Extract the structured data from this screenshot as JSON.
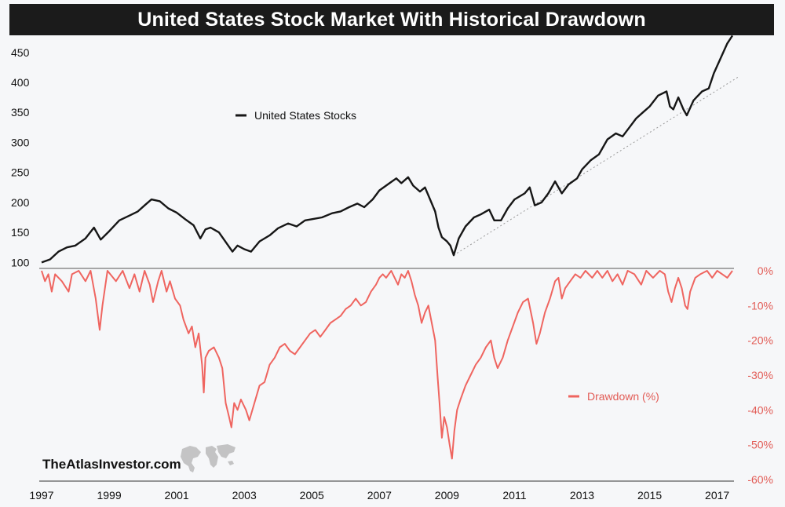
{
  "chart_data": {
    "title": "United States Stock Market With Historical Drawdown",
    "type": "line",
    "x_years": [
      1997,
      1999,
      2001,
      2003,
      2005,
      2007,
      2009,
      2011,
      2013,
      2015,
      2017
    ],
    "x_range": [
      1997.0,
      2017.45
    ],
    "top_panel": {
      "series_name": "United States Stocks",
      "ylim": [
        90,
        485
      ],
      "y_ticks": [
        100,
        150,
        200,
        250,
        300,
        350,
        400,
        450
      ],
      "points": [
        [
          1997.0,
          100
        ],
        [
          1997.25,
          105
        ],
        [
          1997.5,
          118
        ],
        [
          1997.75,
          125
        ],
        [
          1998.0,
          128
        ],
        [
          1998.3,
          140
        ],
        [
          1998.55,
          158
        ],
        [
          1998.75,
          138
        ],
        [
          1999.0,
          152
        ],
        [
          1999.3,
          170
        ],
        [
          1999.6,
          178
        ],
        [
          1999.85,
          185
        ],
        [
          2000.05,
          195
        ],
        [
          2000.25,
          205
        ],
        [
          2000.5,
          202
        ],
        [
          2000.75,
          190
        ],
        [
          2001.0,
          183
        ],
        [
          2001.25,
          172
        ],
        [
          2001.5,
          162
        ],
        [
          2001.7,
          140
        ],
        [
          2001.85,
          155
        ],
        [
          2002.0,
          158
        ],
        [
          2002.25,
          150
        ],
        [
          2002.5,
          130
        ],
        [
          2002.65,
          118
        ],
        [
          2002.8,
          128
        ],
        [
          2003.0,
          122
        ],
        [
          2003.2,
          118
        ],
        [
          2003.45,
          135
        ],
        [
          2003.75,
          145
        ],
        [
          2004.0,
          157
        ],
        [
          2004.3,
          165
        ],
        [
          2004.55,
          160
        ],
        [
          2004.8,
          170
        ],
        [
          2005.0,
          172
        ],
        [
          2005.3,
          175
        ],
        [
          2005.6,
          182
        ],
        [
          2005.85,
          185
        ],
        [
          2006.1,
          192
        ],
        [
          2006.35,
          198
        ],
        [
          2006.55,
          192
        ],
        [
          2006.8,
          205
        ],
        [
          2007.0,
          220
        ],
        [
          2007.3,
          232
        ],
        [
          2007.5,
          240
        ],
        [
          2007.65,
          232
        ],
        [
          2007.85,
          242
        ],
        [
          2008.0,
          228
        ],
        [
          2008.2,
          218
        ],
        [
          2008.35,
          225
        ],
        [
          2008.5,
          205
        ],
        [
          2008.65,
          185
        ],
        [
          2008.75,
          158
        ],
        [
          2008.85,
          142
        ],
        [
          2009.0,
          135
        ],
        [
          2009.1,
          128
        ],
        [
          2009.2,
          112
        ],
        [
          2009.35,
          140
        ],
        [
          2009.55,
          160
        ],
        [
          2009.8,
          175
        ],
        [
          2010.0,
          180
        ],
        [
          2010.25,
          188
        ],
        [
          2010.4,
          170
        ],
        [
          2010.6,
          170
        ],
        [
          2010.8,
          190
        ],
        [
          2011.0,
          205
        ],
        [
          2011.3,
          215
        ],
        [
          2011.45,
          225
        ],
        [
          2011.6,
          195
        ],
        [
          2011.8,
          200
        ],
        [
          2012.0,
          215
        ],
        [
          2012.2,
          235
        ],
        [
          2012.4,
          215
        ],
        [
          2012.6,
          230
        ],
        [
          2012.85,
          240
        ],
        [
          2013.0,
          255
        ],
        [
          2013.25,
          270
        ],
        [
          2013.5,
          280
        ],
        [
          2013.75,
          305
        ],
        [
          2014.0,
          315
        ],
        [
          2014.2,
          310
        ],
        [
          2014.4,
          325
        ],
        [
          2014.6,
          340
        ],
        [
          2014.8,
          350
        ],
        [
          2015.0,
          360
        ],
        [
          2015.25,
          378
        ],
        [
          2015.5,
          385
        ],
        [
          2015.6,
          360
        ],
        [
          2015.7,
          355
        ],
        [
          2015.85,
          375
        ],
        [
          2016.0,
          355
        ],
        [
          2016.1,
          345
        ],
        [
          2016.3,
          370
        ],
        [
          2016.55,
          385
        ],
        [
          2016.75,
          390
        ],
        [
          2016.9,
          415
        ],
        [
          2017.1,
          440
        ],
        [
          2017.3,
          465
        ],
        [
          2017.45,
          478
        ]
      ]
    },
    "trendline": {
      "style": "dotted",
      "from": [
        2009.2,
        112
      ],
      "to": [
        2017.65,
        410
      ]
    },
    "bottom_panel": {
      "series_name": "Drawdown (%)",
      "ylim": [
        -60,
        0
      ],
      "y_ticks": [
        0,
        -10,
        -20,
        -30,
        -40,
        -50,
        -60
      ],
      "y_tick_labels": [
        "0%",
        "-10%",
        "-20%",
        "-30%",
        "-40%",
        "-50%",
        "-60%"
      ],
      "points": [
        [
          1997.0,
          0
        ],
        [
          1997.1,
          -3
        ],
        [
          1997.2,
          -1
        ],
        [
          1997.3,
          -6
        ],
        [
          1997.4,
          -1
        ],
        [
          1997.6,
          -3
        ],
        [
          1997.8,
          -6
        ],
        [
          1997.9,
          -1
        ],
        [
          1998.1,
          0
        ],
        [
          1998.3,
          -3
        ],
        [
          1998.45,
          0
        ],
        [
          1998.6,
          -8
        ],
        [
          1998.72,
          -17
        ],
        [
          1998.8,
          -10
        ],
        [
          1998.95,
          0
        ],
        [
          1999.2,
          -3
        ],
        [
          1999.4,
          0
        ],
        [
          1999.6,
          -5
        ],
        [
          1999.75,
          -1
        ],
        [
          1999.9,
          -6
        ],
        [
          2000.05,
          0
        ],
        [
          2000.2,
          -4
        ],
        [
          2000.3,
          -9
        ],
        [
          2000.45,
          -3
        ],
        [
          2000.55,
          0
        ],
        [
          2000.7,
          -6
        ],
        [
          2000.8,
          -3
        ],
        [
          2000.95,
          -8
        ],
        [
          2001.1,
          -10
        ],
        [
          2001.2,
          -14
        ],
        [
          2001.35,
          -18
        ],
        [
          2001.45,
          -16
        ],
        [
          2001.55,
          -22
        ],
        [
          2001.65,
          -18
        ],
        [
          2001.75,
          -27
        ],
        [
          2001.8,
          -35
        ],
        [
          2001.85,
          -25
        ],
        [
          2001.95,
          -23
        ],
        [
          2002.1,
          -22
        ],
        [
          2002.25,
          -25
        ],
        [
          2002.35,
          -28
        ],
        [
          2002.45,
          -38
        ],
        [
          2002.55,
          -42
        ],
        [
          2002.62,
          -45
        ],
        [
          2002.7,
          -38
        ],
        [
          2002.8,
          -40
        ],
        [
          2002.9,
          -37
        ],
        [
          2003.05,
          -40
        ],
        [
          2003.15,
          -43
        ],
        [
          2003.3,
          -38
        ],
        [
          2003.45,
          -33
        ],
        [
          2003.6,
          -32
        ],
        [
          2003.75,
          -27
        ],
        [
          2003.9,
          -25
        ],
        [
          2004.05,
          -22
        ],
        [
          2004.2,
          -21
        ],
        [
          2004.35,
          -23
        ],
        [
          2004.5,
          -24
        ],
        [
          2004.65,
          -22
        ],
        [
          2004.8,
          -20
        ],
        [
          2004.95,
          -18
        ],
        [
          2005.1,
          -17
        ],
        [
          2005.25,
          -19
        ],
        [
          2005.4,
          -17
        ],
        [
          2005.55,
          -15
        ],
        [
          2005.7,
          -14
        ],
        [
          2005.85,
          -13
        ],
        [
          2006.0,
          -11
        ],
        [
          2006.15,
          -10
        ],
        [
          2006.3,
          -8
        ],
        [
          2006.45,
          -10
        ],
        [
          2006.6,
          -9
        ],
        [
          2006.75,
          -6
        ],
        [
          2006.9,
          -4
        ],
        [
          2007.0,
          -2
        ],
        [
          2007.1,
          -1
        ],
        [
          2007.2,
          -2
        ],
        [
          2007.35,
          0
        ],
        [
          2007.45,
          -2
        ],
        [
          2007.55,
          -4
        ],
        [
          2007.65,
          -1
        ],
        [
          2007.75,
          -2
        ],
        [
          2007.85,
          0
        ],
        [
          2007.95,
          -3
        ],
        [
          2008.05,
          -7
        ],
        [
          2008.15,
          -10
        ],
        [
          2008.25,
          -15
        ],
        [
          2008.35,
          -12
        ],
        [
          2008.45,
          -10
        ],
        [
          2008.55,
          -15
        ],
        [
          2008.65,
          -20
        ],
        [
          2008.72,
          -30
        ],
        [
          2008.78,
          -38
        ],
        [
          2008.85,
          -48
        ],
        [
          2008.92,
          -42
        ],
        [
          2009.0,
          -45
        ],
        [
          2009.08,
          -50
        ],
        [
          2009.15,
          -54
        ],
        [
          2009.22,
          -46
        ],
        [
          2009.3,
          -40
        ],
        [
          2009.4,
          -37
        ],
        [
          2009.55,
          -33
        ],
        [
          2009.7,
          -30
        ],
        [
          2009.85,
          -27
        ],
        [
          2010.0,
          -25
        ],
        [
          2010.15,
          -22
        ],
        [
          2010.3,
          -20
        ],
        [
          2010.4,
          -25
        ],
        [
          2010.5,
          -28
        ],
        [
          2010.65,
          -25
        ],
        [
          2010.8,
          -20
        ],
        [
          2010.95,
          -16
        ],
        [
          2011.1,
          -12
        ],
        [
          2011.25,
          -9
        ],
        [
          2011.4,
          -8
        ],
        [
          2011.55,
          -15
        ],
        [
          2011.65,
          -21
        ],
        [
          2011.75,
          -18
        ],
        [
          2011.9,
          -12
        ],
        [
          2012.05,
          -8
        ],
        [
          2012.2,
          -3
        ],
        [
          2012.3,
          -2
        ],
        [
          2012.4,
          -8
        ],
        [
          2012.5,
          -5
        ],
        [
          2012.65,
          -3
        ],
        [
          2012.8,
          -1
        ],
        [
          2012.95,
          -2
        ],
        [
          2013.1,
          0
        ],
        [
          2013.3,
          -2
        ],
        [
          2013.45,
          0
        ],
        [
          2013.6,
          -2
        ],
        [
          2013.75,
          0
        ],
        [
          2013.9,
          -3
        ],
        [
          2014.05,
          -1
        ],
        [
          2014.2,
          -4
        ],
        [
          2014.35,
          0
        ],
        [
          2014.55,
          -1
        ],
        [
          2014.75,
          -4
        ],
        [
          2014.9,
          0
        ],
        [
          2015.1,
          -2
        ],
        [
          2015.3,
          0
        ],
        [
          2015.45,
          -1
        ],
        [
          2015.55,
          -6
        ],
        [
          2015.65,
          -9
        ],
        [
          2015.75,
          -5
        ],
        [
          2015.85,
          -2
        ],
        [
          2015.95,
          -5
        ],
        [
          2016.05,
          -10
        ],
        [
          2016.12,
          -11
        ],
        [
          2016.2,
          -6
        ],
        [
          2016.35,
          -2
        ],
        [
          2016.5,
          -1
        ],
        [
          2016.7,
          0
        ],
        [
          2016.85,
          -2
        ],
        [
          2017.0,
          0
        ],
        [
          2017.15,
          -1
        ],
        [
          2017.3,
          -2
        ],
        [
          2017.45,
          0
        ]
      ]
    }
  },
  "legend": {
    "stocks_label": "United States Stocks",
    "drawdown_label": "Drawdown (%)"
  },
  "branding": {
    "watermark_text": "TheAtlasInvestor.com"
  },
  "colors": {
    "stocks_line": "#161616",
    "drawdown_line": "#ef6560",
    "drawdown_axis_text": "#e25b55",
    "title_bg": "#1b1b1b",
    "background": "#f6f7f9"
  }
}
